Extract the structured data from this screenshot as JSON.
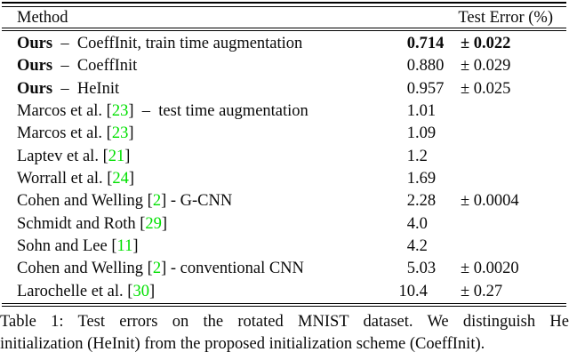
{
  "table": {
    "header": {
      "method": "Method",
      "error": "Test Error (%)"
    },
    "rows": [
      {
        "emph": true,
        "segments": [
          [
            "Ours",
            "bold"
          ],
          [
            "  –  ",
            ""
          ],
          [
            "CoeffInit, train time augmentation",
            ""
          ]
        ],
        "int": "0",
        "frac": ".714",
        "pm": "± 0.022"
      },
      {
        "segments": [
          [
            "Ours",
            "bold"
          ],
          [
            "  –  ",
            ""
          ],
          [
            "CoeffInit",
            ""
          ]
        ],
        "int": "0",
        "frac": ".880",
        "pm": "± 0.029"
      },
      {
        "segments": [
          [
            "Ours",
            "bold"
          ],
          [
            "  –  ",
            ""
          ],
          [
            "HeInit",
            ""
          ]
        ],
        "int": "0",
        "frac": ".957",
        "pm": "± 0.025"
      },
      {
        "segments": [
          [
            "Marcos et al. [",
            ""
          ],
          [
            "23",
            "cite"
          ],
          [
            "]  –  test time augmentation",
            ""
          ]
        ],
        "int": "1",
        "frac": ".01",
        "pm": ""
      },
      {
        "segments": [
          [
            "Marcos et al. [",
            ""
          ],
          [
            "23",
            "cite"
          ],
          [
            "]",
            ""
          ]
        ],
        "int": "1",
        "frac": ".09",
        "pm": ""
      },
      {
        "segments": [
          [
            "Laptev et al. [",
            ""
          ],
          [
            "21",
            "cite"
          ],
          [
            "]",
            ""
          ]
        ],
        "int": "1",
        "frac": ".2",
        "pm": ""
      },
      {
        "segments": [
          [
            "Worrall et al. [",
            ""
          ],
          [
            "24",
            "cite"
          ],
          [
            "]",
            ""
          ]
        ],
        "int": "1",
        "frac": ".69",
        "pm": ""
      },
      {
        "segments": [
          [
            "Cohen and Welling [",
            ""
          ],
          [
            "2",
            "cite"
          ],
          [
            "] - G-CNN",
            ""
          ]
        ],
        "int": "2",
        "frac": ".28",
        "pm": "± 0.0004"
      },
      {
        "segments": [
          [
            "Schmidt and Roth [",
            ""
          ],
          [
            "29",
            "cite"
          ],
          [
            "]",
            ""
          ]
        ],
        "int": "4",
        "frac": ".0",
        "pm": ""
      },
      {
        "segments": [
          [
            "Sohn and Lee [",
            ""
          ],
          [
            "11",
            "cite"
          ],
          [
            "]",
            ""
          ]
        ],
        "int": "4",
        "frac": ".2",
        "pm": ""
      },
      {
        "segments": [
          [
            "Cohen and Welling [",
            ""
          ],
          [
            "2",
            "cite"
          ],
          [
            "] - conventional CNN",
            ""
          ]
        ],
        "int": "5",
        "frac": ".03",
        "pm": "± 0.0020"
      },
      {
        "segments": [
          [
            "Larochelle et al. [",
            ""
          ],
          [
            "30",
            "cite"
          ],
          [
            "]",
            ""
          ]
        ],
        "int": "10",
        "frac": ".4",
        "pm": "± 0.27"
      }
    ]
  },
  "caption": {
    "line1": "Table 1: Test errors on the rotated MNIST dataset. We distinguish He",
    "line2": "initialization (HeInit) from the proposed initialization scheme (CoeffInit)."
  },
  "colors": {
    "citation_green": "#00e000"
  }
}
